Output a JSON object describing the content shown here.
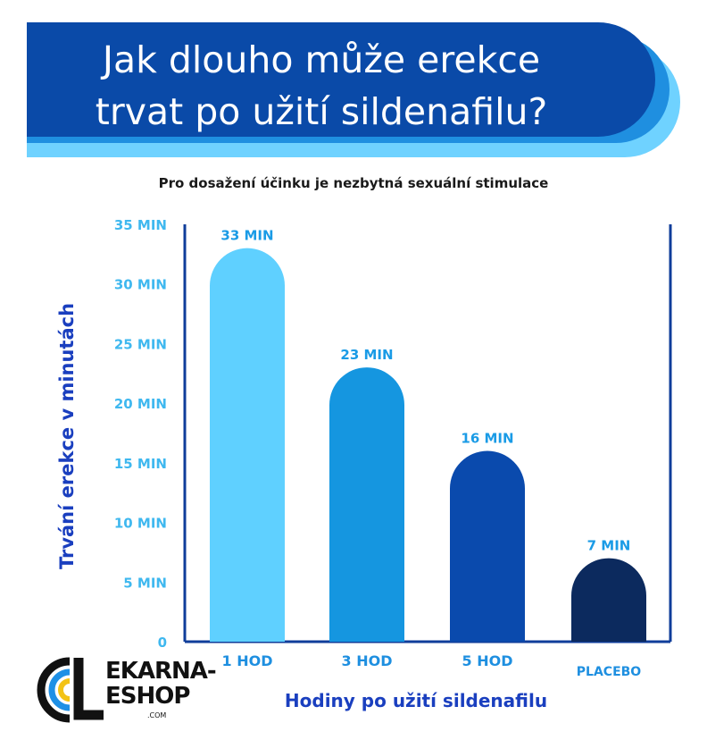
{
  "header": {
    "title_line1": "Jak dlouho může erekce",
    "title_line2": "trvat po užití sildenafilu?",
    "subtitle": "Pro dosažení účinku je nezbytná sexuální stimulace"
  },
  "colors": {
    "banner_dark": "#0a4aa8",
    "banner_mid": "#1f8fe0",
    "banner_light": "#6fd2ff",
    "axis_label": "#1a3fbf",
    "tick_label": "#3fb8ef",
    "axis_line": "#0f3d9a"
  },
  "chart_data": {
    "type": "bar",
    "categories": [
      "1 HOD",
      "3 HOD",
      "5 HOD",
      "PLACEBO"
    ],
    "values": [
      33,
      23,
      16,
      7
    ],
    "data_labels": [
      "33 MIN",
      "23 MIN",
      "16 MIN",
      "7 MIN"
    ],
    "bar_colors": [
      "#5fd0ff",
      "#1596e0",
      "#0a4aad",
      "#0c2a5e"
    ],
    "ylim": [
      0,
      35
    ],
    "yticks": [
      0,
      5,
      10,
      15,
      20,
      25,
      30,
      35
    ],
    "ytick_labels": [
      "0",
      "5 MIN",
      "10 MIN",
      "15 MIN",
      "20 MIN",
      "25 MIN",
      "30 MIN",
      "35 MIN"
    ],
    "ylabel": "Trvání erekce v minutách",
    "xlabel": "Hodiny po užití sildenafilu",
    "grid": false
  },
  "logo": {
    "line1": "EKARNA-",
    "line2": "ESHOP",
    "line3": ".COM"
  }
}
